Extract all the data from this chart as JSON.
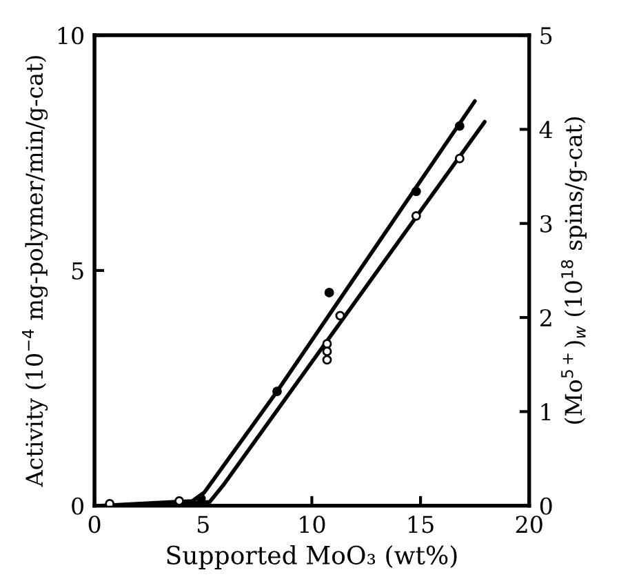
{
  "chart_data": {
    "type": "scatter",
    "xlabel": "Supported MoO₃ (wt%)",
    "ylabel": "Activity (10$^{−4}$ mg-polymer/min/g-cat)",
    "y2label": "(Mo$^{5+}$)$_{w}$ (10$^{18}$ spins/g-cat)",
    "xlim": [
      0,
      20
    ],
    "xticks": [
      0,
      5,
      10,
      15,
      20
    ],
    "ylim": [
      0,
      10
    ],
    "yticks": [
      0,
      5,
      10
    ],
    "y2lim": [
      0,
      5
    ],
    "y2ticks": [
      0,
      1,
      2,
      3,
      4,
      5
    ],
    "grid": false,
    "legend": false,
    "series": [
      {
        "marker": "circle",
        "color": "#000000",
        "x": [
          4.9,
          8.4,
          10.8,
          14.8,
          16.8
        ],
        "values": [
          0.15,
          2.43,
          4.53,
          6.68,
          8.07
        ]
      },
      {
        "marker": "circle",
        "color": "#ffffff",
        "axis": "y2",
        "x": [
          0.7,
          3.9,
          10.7,
          10.7,
          10.7,
          11.3,
          14.8,
          16.8
        ],
        "values": [
          0.02,
          0.05,
          1.72,
          1.64,
          1.55,
          2.02,
          3.08,
          3.69
        ]
      },
      {
        "type": "line",
        "color": "#000000",
        "line_style": "solid",
        "x": [
          0.3,
          4.5,
          5.05,
          8.4,
          17.5
        ],
        "values": [
          0.0,
          0.1,
          0.28,
          2.43,
          8.6
        ]
      },
      {
        "type": "line",
        "color": "#000000",
        "line_style": "solid",
        "axis": "y2",
        "x": [
          3.9,
          5.3,
          5.9,
          17.95
        ],
        "values": [
          0.02,
          0.04,
          0.21,
          4.08
        ]
      }
    ]
  }
}
